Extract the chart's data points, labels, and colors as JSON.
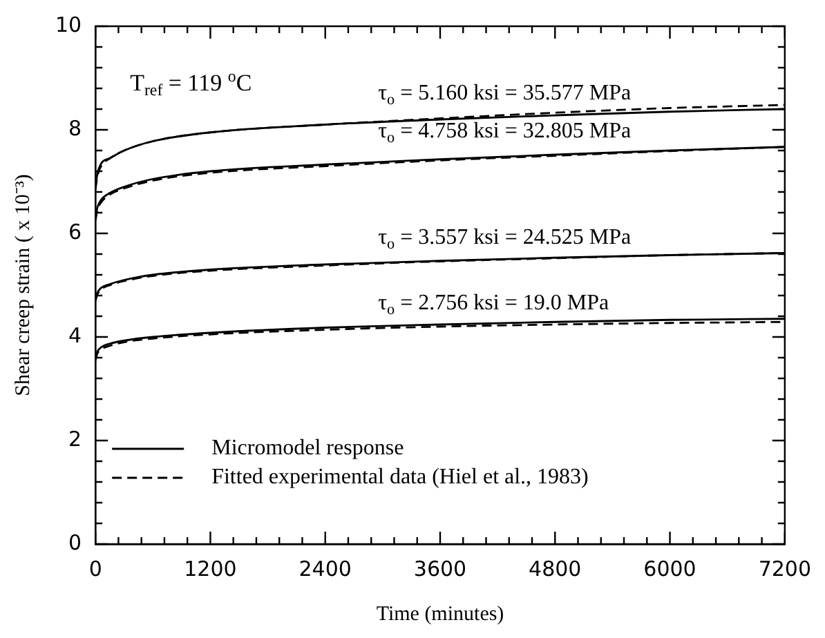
{
  "chart_data": {
    "type": "line",
    "xlabel": "Time (minutes)",
    "ylabel": "Shear creep strain ( x 10⁻³)",
    "x": [
      0,
      20,
      60,
      150,
      300,
      600,
      1200,
      2400,
      3600,
      4800,
      6000,
      7200
    ],
    "series": [
      {
        "name": "Micromodel response",
        "color": "#000000",
        "line_style": "solid",
        "values": [
          6.9,
          7.15,
          7.35,
          7.45,
          7.6,
          7.78,
          7.95,
          8.1,
          8.2,
          8.28,
          8.35,
          8.4
        ]
      },
      {
        "name": "Fitted experimental data (Hiel et al., 1983)",
        "color": "#000000",
        "line_style": "dashed",
        "values": [
          6.85,
          7.1,
          7.3,
          7.45,
          7.6,
          7.78,
          7.95,
          8.1,
          8.22,
          8.33,
          8.42,
          8.48
        ]
      },
      {
        "color": "#000000",
        "line_style": "solid",
        "values": [
          6.3,
          6.5,
          6.65,
          6.78,
          6.9,
          7.05,
          7.2,
          7.33,
          7.43,
          7.52,
          7.6,
          7.67
        ]
      },
      {
        "color": "#000000",
        "line_style": "dashed",
        "values": [
          6.25,
          6.45,
          6.6,
          6.75,
          6.87,
          7.02,
          7.17,
          7.3,
          7.41,
          7.5,
          7.59,
          7.67
        ]
      },
      {
        "color": "#000000",
        "line_style": "solid",
        "values": [
          4.72,
          4.85,
          4.95,
          5.02,
          5.1,
          5.2,
          5.3,
          5.4,
          5.47,
          5.53,
          5.58,
          5.62
        ]
      },
      {
        "color": "#000000",
        "line_style": "dashed",
        "values": [
          4.7,
          4.82,
          4.92,
          5.0,
          5.08,
          5.18,
          5.28,
          5.38,
          5.46,
          5.52,
          5.58,
          5.62
        ]
      },
      {
        "color": "#000000",
        "line_style": "solid",
        "values": [
          3.6,
          3.72,
          3.8,
          3.87,
          3.93,
          4.0,
          4.08,
          4.18,
          4.24,
          4.29,
          4.33,
          4.35
        ]
      },
      {
        "color": "#000000",
        "line_style": "dashed",
        "values": [
          3.55,
          3.68,
          3.76,
          3.83,
          3.9,
          3.97,
          4.05,
          4.14,
          4.2,
          4.24,
          4.27,
          4.29
        ]
      }
    ],
    "xlim": [
      0,
      7200
    ],
    "xticks": [
      0,
      {
        "value": 240,
        "label": null
      },
      {
        "value": 480,
        "label": null
      },
      {
        "value": 720,
        "label": null
      },
      {
        "value": 960,
        "label": null
      },
      1200,
      {
        "value": 1440,
        "label": null
      },
      {
        "value": 1680,
        "label": null
      },
      {
        "value": 1920,
        "label": null
      },
      {
        "value": 2160,
        "label": null
      },
      2400,
      {
        "value": 2640,
        "label": null
      },
      {
        "value": 2880,
        "label": null
      },
      {
        "value": 3120,
        "label": null
      },
      {
        "value": 3360,
        "label": null
      },
      3600,
      {
        "value": 3840,
        "label": null
      },
      {
        "value": 4080,
        "label": null
      },
      {
        "value": 4320,
        "label": null
      },
      {
        "value": 4560,
        "label": null
      },
      4800,
      {
        "value": 5040,
        "label": null
      },
      {
        "value": 5280,
        "label": null
      },
      {
        "value": 5520,
        "label": null
      },
      {
        "value": 5760,
        "label": null
      },
      6000,
      {
        "value": 6240,
        "label": null
      },
      {
        "value": 6480,
        "label": null
      },
      {
        "value": 6720,
        "label": null
      },
      {
        "value": 6960,
        "label": null
      },
      7200
    ],
    "ylim": [
      0,
      10
    ],
    "yticks": [
      0,
      {
        "value": 0.4,
        "label": null
      },
      {
        "value": 0.8,
        "label": null
      },
      {
        "value": 1.2,
        "label": null
      },
      {
        "value": 1.6,
        "label": null
      },
      2,
      {
        "value": 2.4,
        "label": null
      },
      {
        "value": 2.8,
        "label": null
      },
      {
        "value": 3.2,
        "label": null
      },
      {
        "value": 3.6,
        "label": null
      },
      4,
      {
        "value": 4.4,
        "label": null
      },
      {
        "value": 4.8,
        "label": null
      },
      {
        "value": 5.2,
        "label": null
      },
      {
        "value": 5.6,
        "label": null
      },
      6,
      {
        "value": 6.4,
        "label": null
      },
      {
        "value": 6.8,
        "label": null
      },
      {
        "value": 7.2,
        "label": null
      },
      {
        "value": 7.6,
        "label": null
      },
      8,
      {
        "value": 8.4,
        "label": null
      },
      {
        "value": 8.8,
        "label": null
      },
      {
        "value": 9.2,
        "label": null
      },
      {
        "value": 9.6,
        "label": null
      },
      10
    ],
    "grid": false,
    "marker": "none",
    "legend": "bottom left",
    "annotations": [
      "T$_{ref}$ = 119 $^{o}$C",
      "τ$_{o}$ = 5.160 ksi = 35.577 MPa",
      "τ$_{o}$ = 4.758 ksi = 32.805 MPa",
      "τ$_{o}$ = 3.557 ksi = 24.525 MPa",
      "τ$_{o}$ = 2.756 ksi = 19.0 MPa"
    ]
  }
}
